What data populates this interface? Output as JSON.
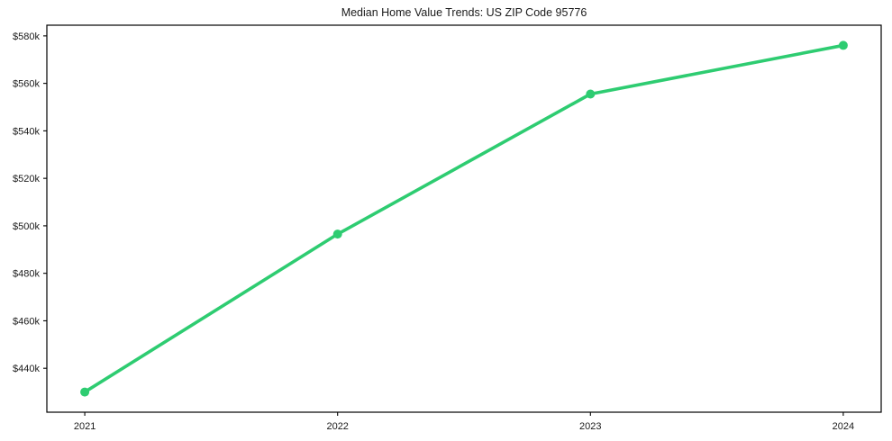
{
  "chart_data": {
    "type": "line",
    "title": "Median Home Value Trends: US ZIP Code 95776",
    "x": [
      2021,
      2022,
      2023,
      2024
    ],
    "x_tick_labels": [
      "2021",
      "2022",
      "2023",
      "2024"
    ],
    "series": [
      {
        "values": [
          430000,
          496500,
          555500,
          576000
        ],
        "color": "#2ecc71",
        "marker": "circle"
      }
    ],
    "y_ticks": [
      440000,
      460000,
      480000,
      500000,
      520000,
      540000,
      560000,
      580000
    ],
    "y_tick_labels": [
      "$440k",
      "$460k",
      "$480k",
      "$500k",
      "$520k",
      "$540k",
      "$560k",
      "$580k"
    ],
    "ylim": [
      421500,
      584500
    ],
    "xlim": [
      2020.85,
      2024.15
    ],
    "grid": false,
    "legend": "none",
    "axis_color": "#000000",
    "text_color": "#1a1a1a",
    "background": "#ffffff"
  }
}
